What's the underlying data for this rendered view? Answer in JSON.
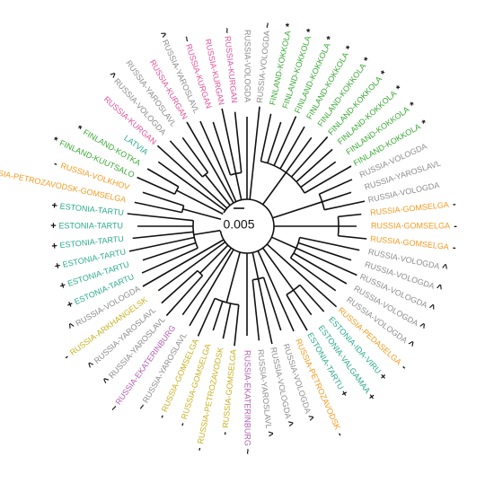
{
  "scale_label": "0.005",
  "leaves": [
    {
      "label": "RUSSIA-VOLOGDA",
      "symbol": "~",
      "color": "#8c8c8c"
    },
    {
      "label": "FINLAND-KOKKOLA",
      "symbol": "*",
      "color": "#3aa935"
    },
    {
      "label": "FINLAND-KOKKOLA",
      "symbol": "*",
      "color": "#3aa935"
    },
    {
      "label": "FINLAND-KOKKOLA",
      "symbol": "*",
      "color": "#3aa935"
    },
    {
      "label": "FINLAND-KOKKOLA",
      "symbol": "*",
      "color": "#3aa935"
    },
    {
      "label": "FINLAND-KOKKOLA",
      "symbol": "*",
      "color": "#3aa935"
    },
    {
      "label": "FINLAND-KOKKOLA",
      "symbol": "*",
      "color": "#3aa935"
    },
    {
      "label": "FINLAND-KOKKOLA",
      "symbol": "*",
      "color": "#3aa935"
    },
    {
      "label": "FINLAND-KOKKOLA",
      "symbol": "*",
      "color": "#3aa935"
    },
    {
      "label": "FINLAND-KOKKOLA",
      "symbol": "*",
      "color": "#3aa935"
    },
    {
      "label": "RUSSIA-VOLOGDA",
      "symbol": "",
      "color": "#8c8c8c"
    },
    {
      "label": "RUSSIA-YAROSLAVL",
      "symbol": "",
      "color": "#8c8c8c"
    },
    {
      "label": "RUSSIA-VOLOGDA",
      "symbol": "",
      "color": "#8c8c8c"
    },
    {
      "label": "RUSSIA-GOMSELGA",
      "symbol": "-",
      "color": "#f39a1e"
    },
    {
      "label": "RUSSIA-GOMSELGA",
      "symbol": "-",
      "color": "#f39a1e"
    },
    {
      "label": "RUSSIA-GOMSELGA",
      "symbol": "-",
      "color": "#f39a1e"
    },
    {
      "label": "RUSSIA-VOLOGDA",
      "symbol": "^",
      "color": "#8c8c8c"
    },
    {
      "label": "RUSSIA-VOLOGDA",
      "symbol": "^",
      "color": "#8c8c8c"
    },
    {
      "label": "RUSSIA-VOLOGDA",
      "symbol": "^",
      "color": "#8c8c8c"
    },
    {
      "label": "RUSSIA-VOLOGDA",
      "symbol": "^",
      "color": "#8c8c8c"
    },
    {
      "label": "RUSSIA-VOLOGDA",
      "symbol": "^",
      "color": "#8c8c8c"
    },
    {
      "label": "RUSSIA-PEDASELGA",
      "symbol": "-",
      "color": "#f39a1e"
    },
    {
      "label": "ESTONIA-IDA-VIRU",
      "symbol": "+",
      "color": "#2aaa8a"
    },
    {
      "label": "ESTONIA-VALGAMAA",
      "symbol": "+",
      "color": "#2aaa8a"
    },
    {
      "label": "ESTONIA-TARTU",
      "symbol": "+",
      "color": "#2aaa8a"
    },
    {
      "label": "RUSSIA-PETROZAVODSK",
      "symbol": "-",
      "color": "#f39a1e"
    },
    {
      "label": "RUSSIA-VOLOGDA",
      "symbol": "^",
      "color": "#8c8c8c"
    },
    {
      "label": "RUSSIA-VOLOGDA",
      "symbol": "^",
      "color": "#8c8c8c"
    },
    {
      "label": "RUSSIA-YAROSLAVL",
      "symbol": "^",
      "color": "#8c8c8c"
    },
    {
      "label": "RUSSIA-EKATERINBURG",
      "symbol": "~",
      "color": "#b05fb0"
    },
    {
      "label": "RUSSIA-GOMSELGA",
      "symbol": "-",
      "color": "#c8b020"
    },
    {
      "label": "RUSSIA-PETROZAVODSK",
      "symbol": "-",
      "color": "#c8b020"
    },
    {
      "label": "RUSSIA-GOMSELGA",
      "symbol": "-",
      "color": "#c8b020"
    },
    {
      "label": "RUSSIA-GOMSELGA",
      "symbol": "-",
      "color": "#c8b020"
    },
    {
      "label": "RUSSIA-YAROSLAVL",
      "symbol": "~",
      "color": "#8c8c8c"
    },
    {
      "label": "RUSSIA-EKATERINBURG",
      "symbol": "~",
      "color": "#b05fb0"
    },
    {
      "label": "RUSSIA-YAROSLAVL",
      "symbol": "^",
      "color": "#8c8c8c"
    },
    {
      "label": "RUSSIA-YAROSLAVL",
      "symbol": "^",
      "color": "#8c8c8c"
    },
    {
      "label": "RUSSIA-ARKHANGELSK",
      "symbol": "-",
      "color": "#c8b020"
    },
    {
      "label": "RUSSIA-VOLOGDA",
      "symbol": "^",
      "color": "#8c8c8c"
    },
    {
      "label": "ESTONIA-TARTU",
      "symbol": "+",
      "color": "#2aaa8a"
    },
    {
      "label": "ESTONIA-TARTU",
      "symbol": "+",
      "color": "#2aaa8a"
    },
    {
      "label": "ESTONIA-TARTU",
      "symbol": "+",
      "color": "#2aaa8a"
    },
    {
      "label": "ESTONIA-TARTU",
      "symbol": "+",
      "color": "#2aaa8a"
    },
    {
      "label": "ESTONIA-TARTU",
      "symbol": "+",
      "color": "#2aaa8a"
    },
    {
      "label": "ESTONIA-TARTU",
      "symbol": "+",
      "color": "#2aaa8a"
    },
    {
      "label": "RUSSIA-PETROZAVODSK-GOMSELGA",
      "symbol": "-",
      "color": "#f39a1e"
    },
    {
      "label": "RUSSIA-VOLKHOV",
      "symbol": "-",
      "color": "#f39a1e"
    },
    {
      "label": "FINLAND-KUUTSALO",
      "symbol": "*",
      "color": "#3aa935"
    },
    {
      "label": "FINLAND-KOTKA",
      "symbol": "*",
      "color": "#3aa935"
    },
    {
      "label": "LATVIA",
      "symbol": "",
      "color": "#2aaa8a"
    },
    {
      "label": "RUSSIA-KURGAN",
      "symbol": "",
      "color": "#e0509a"
    },
    {
      "label": "RUSSIA-VOLOGDA",
      "symbol": "^",
      "color": "#8c8c8c"
    },
    {
      "label": "RUSSIA-YAROSLAVL",
      "symbol": "",
      "color": "#8c8c8c"
    },
    {
      "label": "RUSSIA-KURGAN",
      "symbol": "",
      "color": "#e0509a"
    },
    {
      "label": "RUSSIA-YAROSLAVL",
      "symbol": "^",
      "color": "#8c8c8c"
    },
    {
      "label": "RUSSIA-KURGAN",
      "symbol": "~",
      "color": "#e0509a"
    },
    {
      "label": "RUSSIA-KURGAN",
      "symbol": "",
      "color": "#e0509a"
    },
    {
      "label": "RUSSIA-KURGAN",
      "symbol": "~",
      "color": "#e0509a"
    },
    {
      "label": "RUSSIA-VOLOGDA",
      "symbol": "",
      "color": "#8c8c8c"
    }
  ]
}
